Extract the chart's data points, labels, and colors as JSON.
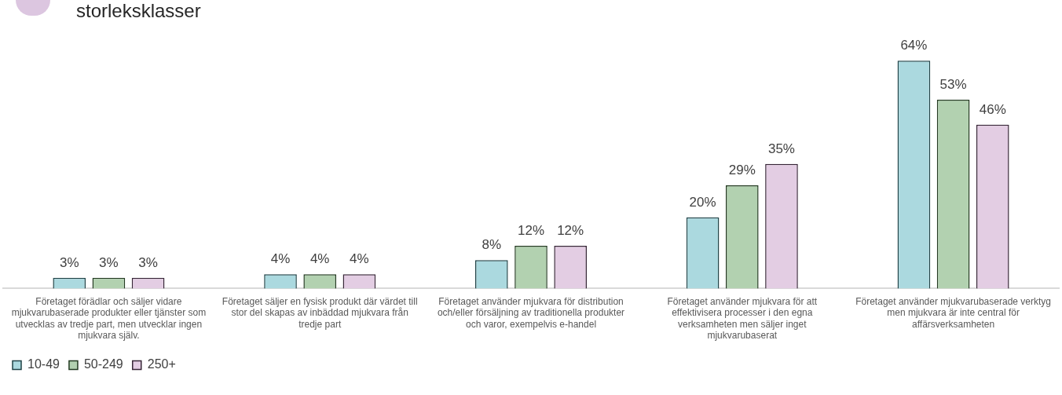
{
  "chart_data": {
    "type": "bar",
    "title": "storleksklasser",
    "categories": [
      "Företaget förädlar och säljer vidare mjukvarubaserade produkter eller tjänster som utvecklas av tredje part, men utvecklar ingen mjukvara själv.",
      "Företaget säljer en fysisk produkt där värdet till stor del skapas av inbäddad mjukvara från tredje part",
      "Företaget använder mjukvara för distribution och/eller försäljning av traditionella produkter och varor, exempelvis e-handel",
      "Företaget använder mjukvara för att effektivisera processer i den egna verksamheten men säljer inget mjukvarubaserat",
      "Företaget använder mjukvarubaserade verktyg men mjukvara är inte central för affärsverksamheten"
    ],
    "series": [
      {
        "name": "10-49",
        "color": "#abd9df",
        "values": [
          3,
          4,
          8,
          20,
          64
        ],
        "value_labels": [
          "3%",
          "4%",
          "8%",
          "20%",
          "64%"
        ]
      },
      {
        "name": "50-249",
        "color": "#b2d1b0",
        "values": [
          3,
          4,
          12,
          29,
          53
        ],
        "value_labels": [
          "3%",
          "4%",
          "12%",
          "29%",
          "53%"
        ]
      },
      {
        "name": "250+",
        "color": "#e3cde3",
        "values": [
          3,
          4,
          12,
          35,
          46
        ],
        "value_labels": [
          "3%",
          "4%",
          "12%",
          "35%",
          "46%"
        ]
      }
    ],
    "legend": "bottom left",
    "grid": false,
    "tick_labels": "x"
  }
}
